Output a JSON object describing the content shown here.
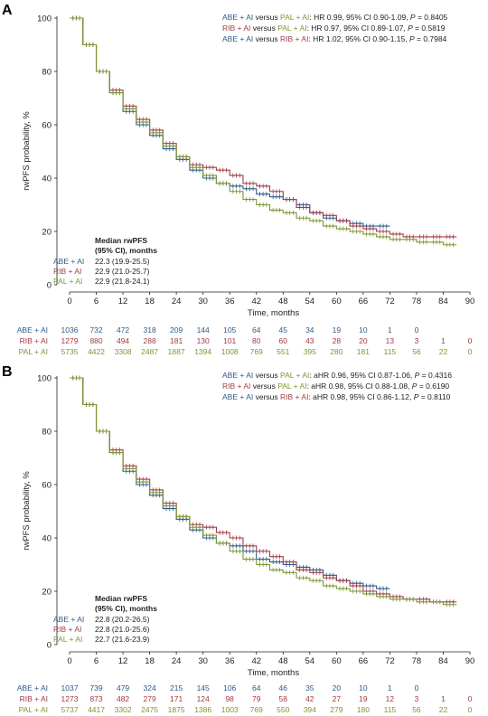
{
  "colors": {
    "abe": "#2b5a8a",
    "rib": "#a23a45",
    "pal": "#7b9632",
    "axis": "#222222"
  },
  "chart_data": [
    {
      "panel_label": "A",
      "type": "line",
      "xlabel": "Time, months",
      "ylabel": "rwPFS probability, %",
      "xlim": [
        0,
        90
      ],
      "ylim": [
        0,
        100
      ],
      "xticks": [
        0,
        6,
        12,
        18,
        24,
        30,
        36,
        42,
        48,
        54,
        60,
        66,
        72,
        78,
        84,
        90
      ],
      "yticks": [
        0,
        20,
        40,
        60,
        80,
        100
      ],
      "comparisons": [
        {
          "a": "ABE + AI",
          "a_color": "abe",
          "vs": " versus ",
          "b": "PAL + AI",
          "b_color": "pal",
          "stat": ": HR 0.99, 95% CI 0.90-1.09, ",
          "p": "P",
          "pval": " = 0.8405"
        },
        {
          "a": "RIB + AI",
          "a_color": "rib",
          "vs": " versus ",
          "b": "PAL + AI",
          "b_color": "pal",
          "stat": ": HR 0.97, 95% CI 0.89-1.07, ",
          "p": "P",
          "pval": " = 0.5819"
        },
        {
          "a": "ABE + AI",
          "a_color": "abe",
          "vs": " versus ",
          "b": "RIB + AI",
          "b_color": "rib",
          "stat": ": HR 1.02, 95% CI 0.90-1.15, ",
          "p": "P",
          "pval": " = 0.7984"
        }
      ],
      "median_title": [
        "Median rwPFS",
        "(95% CI), months"
      ],
      "medians": [
        {
          "name": "ABE + AI",
          "value": "22.3 (19.9-25.5)"
        },
        {
          "name": "RIB + AI",
          "value": "22.9 (21.0-25.7)"
        },
        {
          "name": "PAL + AI",
          "value": "22.9 (21.8-24.1)"
        }
      ],
      "series": [
        {
          "name": "ABE + AI",
          "color": "abe",
          "x": [
            0,
            3,
            6,
            9,
            12,
            15,
            18,
            21,
            24,
            27,
            30,
            33,
            36,
            39,
            42,
            45,
            48,
            51,
            54,
            57,
            60,
            63,
            66,
            69,
            72
          ],
          "y": [
            100,
            90,
            80,
            72,
            65,
            60,
            56,
            51,
            47,
            43,
            40,
            38,
            37,
            36,
            34,
            33,
            32,
            30,
            27,
            25,
            24,
            23,
            22,
            22,
            22
          ]
        },
        {
          "name": "RIB + AI",
          "color": "rib",
          "x": [
            0,
            3,
            6,
            9,
            12,
            15,
            18,
            21,
            24,
            27,
            30,
            33,
            36,
            39,
            42,
            45,
            48,
            51,
            54,
            57,
            60,
            63,
            66,
            69,
            72,
            75,
            78,
            81,
            84,
            87
          ],
          "y": [
            100,
            90,
            80,
            73,
            67,
            62,
            58,
            53,
            48,
            45,
            44,
            43,
            41,
            38,
            37,
            35,
            32,
            29,
            27,
            26,
            24,
            22,
            21,
            20,
            19,
            18,
            18,
            18,
            18,
            18
          ]
        },
        {
          "name": "PAL + AI",
          "color": "pal",
          "x": [
            0,
            3,
            6,
            9,
            12,
            15,
            18,
            21,
            24,
            27,
            30,
            33,
            36,
            39,
            42,
            45,
            48,
            51,
            54,
            57,
            60,
            63,
            66,
            69,
            72,
            75,
            78,
            81,
            84,
            87
          ],
          "y": [
            100,
            90,
            80,
            72,
            66,
            61,
            57,
            52,
            48,
            44,
            41,
            38,
            35,
            32,
            30,
            28,
            27,
            25,
            24,
            22,
            21,
            20,
            19,
            18,
            17,
            17,
            16,
            16,
            15,
            15
          ]
        }
      ],
      "risk_table": [
        {
          "name": "ABE + AI",
          "color": "abe",
          "counts": [
            "1036",
            "732",
            "472",
            "318",
            "209",
            "144",
            "105",
            "64",
            "45",
            "34",
            "19",
            "10",
            "1",
            "0"
          ]
        },
        {
          "name": "RIB + AI",
          "color": "rib",
          "counts": [
            "1279",
            "880",
            "494",
            "288",
            "181",
            "130",
            "101",
            "80",
            "60",
            "43",
            "28",
            "20",
            "13",
            "3",
            "1",
            "0"
          ]
        },
        {
          "name": "PAL + AI",
          "color": "pal",
          "counts": [
            "5735",
            "4422",
            "3308",
            "2487",
            "1887",
            "1394",
            "1008",
            "769",
            "551",
            "395",
            "280",
            "181",
            "115",
            "56",
            "22",
            "0"
          ]
        }
      ]
    },
    {
      "panel_label": "B",
      "type": "line",
      "xlabel": "Time, months",
      "ylabel": "rwPFS probability, %",
      "xlim": [
        0,
        90
      ],
      "ylim": [
        0,
        100
      ],
      "xticks": [
        0,
        6,
        12,
        18,
        24,
        30,
        36,
        42,
        48,
        54,
        60,
        66,
        72,
        78,
        84,
        90
      ],
      "yticks": [
        0,
        20,
        40,
        60,
        80,
        100
      ],
      "comparisons": [
        {
          "a": "ABE + AI",
          "a_color": "abe",
          "vs": " versus ",
          "b": "PAL + AI",
          "b_color": "pal",
          "stat": ": aHR 0.96, 95% CI 0.87-1.06, ",
          "p": "P",
          "pval": " = 0.4316"
        },
        {
          "a": "RIB + AI",
          "a_color": "rib",
          "vs": " versus ",
          "b": "PAL + AI",
          "b_color": "pal",
          "stat": ": aHR 0.98, 95% CI 0.88-1.08, ",
          "p": "P",
          "pval": " = 0.6190"
        },
        {
          "a": "ABE + AI",
          "a_color": "abe",
          "vs": " versus ",
          "b": "RIB + AI",
          "b_color": "rib",
          "stat": ": aHR 0.98, 95% CI 0.86-1.12, ",
          "p": "P",
          "pval": " = 0.8110"
        }
      ],
      "median_title": [
        "Median rwPFS",
        "(95% CI), months"
      ],
      "medians": [
        {
          "name": "ABE + AI",
          "value": "22.8 (20.2-26.5)"
        },
        {
          "name": "RIB + AI",
          "value": "22.8 (21.0-25.6)"
        },
        {
          "name": "PAL + AI",
          "value": "22.7 (21.6-23.9)"
        }
      ],
      "series": [
        {
          "name": "ABE + AI",
          "color": "abe",
          "x": [
            0,
            3,
            6,
            9,
            12,
            15,
            18,
            21,
            24,
            27,
            30,
            33,
            36,
            39,
            42,
            45,
            48,
            51,
            54,
            57,
            60,
            63,
            66,
            69,
            72
          ],
          "y": [
            100,
            90,
            80,
            72,
            65,
            60,
            56,
            51,
            47,
            43,
            40,
            38,
            37,
            35,
            32,
            31,
            30,
            29,
            28,
            26,
            24,
            23,
            22,
            21,
            21
          ]
        },
        {
          "name": "RIB + AI",
          "color": "rib",
          "x": [
            0,
            3,
            6,
            9,
            12,
            15,
            18,
            21,
            24,
            27,
            30,
            33,
            36,
            39,
            42,
            45,
            48,
            51,
            54,
            57,
            60,
            63,
            66,
            69,
            72,
            75,
            78,
            81,
            84,
            87
          ],
          "y": [
            100,
            90,
            80,
            73,
            67,
            62,
            58,
            53,
            48,
            45,
            44,
            42,
            40,
            37,
            35,
            33,
            31,
            28,
            27,
            25,
            24,
            22,
            20,
            19,
            18,
            17,
            17,
            16,
            16,
            16
          ]
        },
        {
          "name": "PAL + AI",
          "color": "pal",
          "x": [
            0,
            3,
            6,
            9,
            12,
            15,
            18,
            21,
            24,
            27,
            30,
            33,
            36,
            39,
            42,
            45,
            48,
            51,
            54,
            57,
            60,
            63,
            66,
            69,
            72,
            75,
            78,
            81,
            84,
            87
          ],
          "y": [
            100,
            90,
            80,
            72,
            66,
            61,
            57,
            52,
            48,
            44,
            41,
            38,
            35,
            32,
            30,
            28,
            27,
            25,
            24,
            22,
            21,
            20,
            19,
            18,
            17,
            17,
            16,
            16,
            15,
            15
          ]
        }
      ],
      "risk_table": [
        {
          "name": "ABE + AI",
          "color": "abe",
          "counts": [
            "1037",
            "739",
            "479",
            "324",
            "215",
            "145",
            "106",
            "64",
            "46",
            "35",
            "20",
            "10",
            "1",
            "0"
          ]
        },
        {
          "name": "RIB + AI",
          "color": "rib",
          "counts": [
            "1273",
            "873",
            "482",
            "279",
            "171",
            "124",
            "98",
            "79",
            "58",
            "42",
            "27",
            "19",
            "12",
            "3",
            "1",
            "0"
          ]
        },
        {
          "name": "PAL + AI",
          "color": "pal",
          "counts": [
            "5737",
            "4417",
            "3302",
            "2475",
            "1875",
            "1386",
            "1003",
            "769",
            "550",
            "394",
            "279",
            "180",
            "115",
            "56",
            "22",
            "0"
          ]
        }
      ]
    }
  ]
}
